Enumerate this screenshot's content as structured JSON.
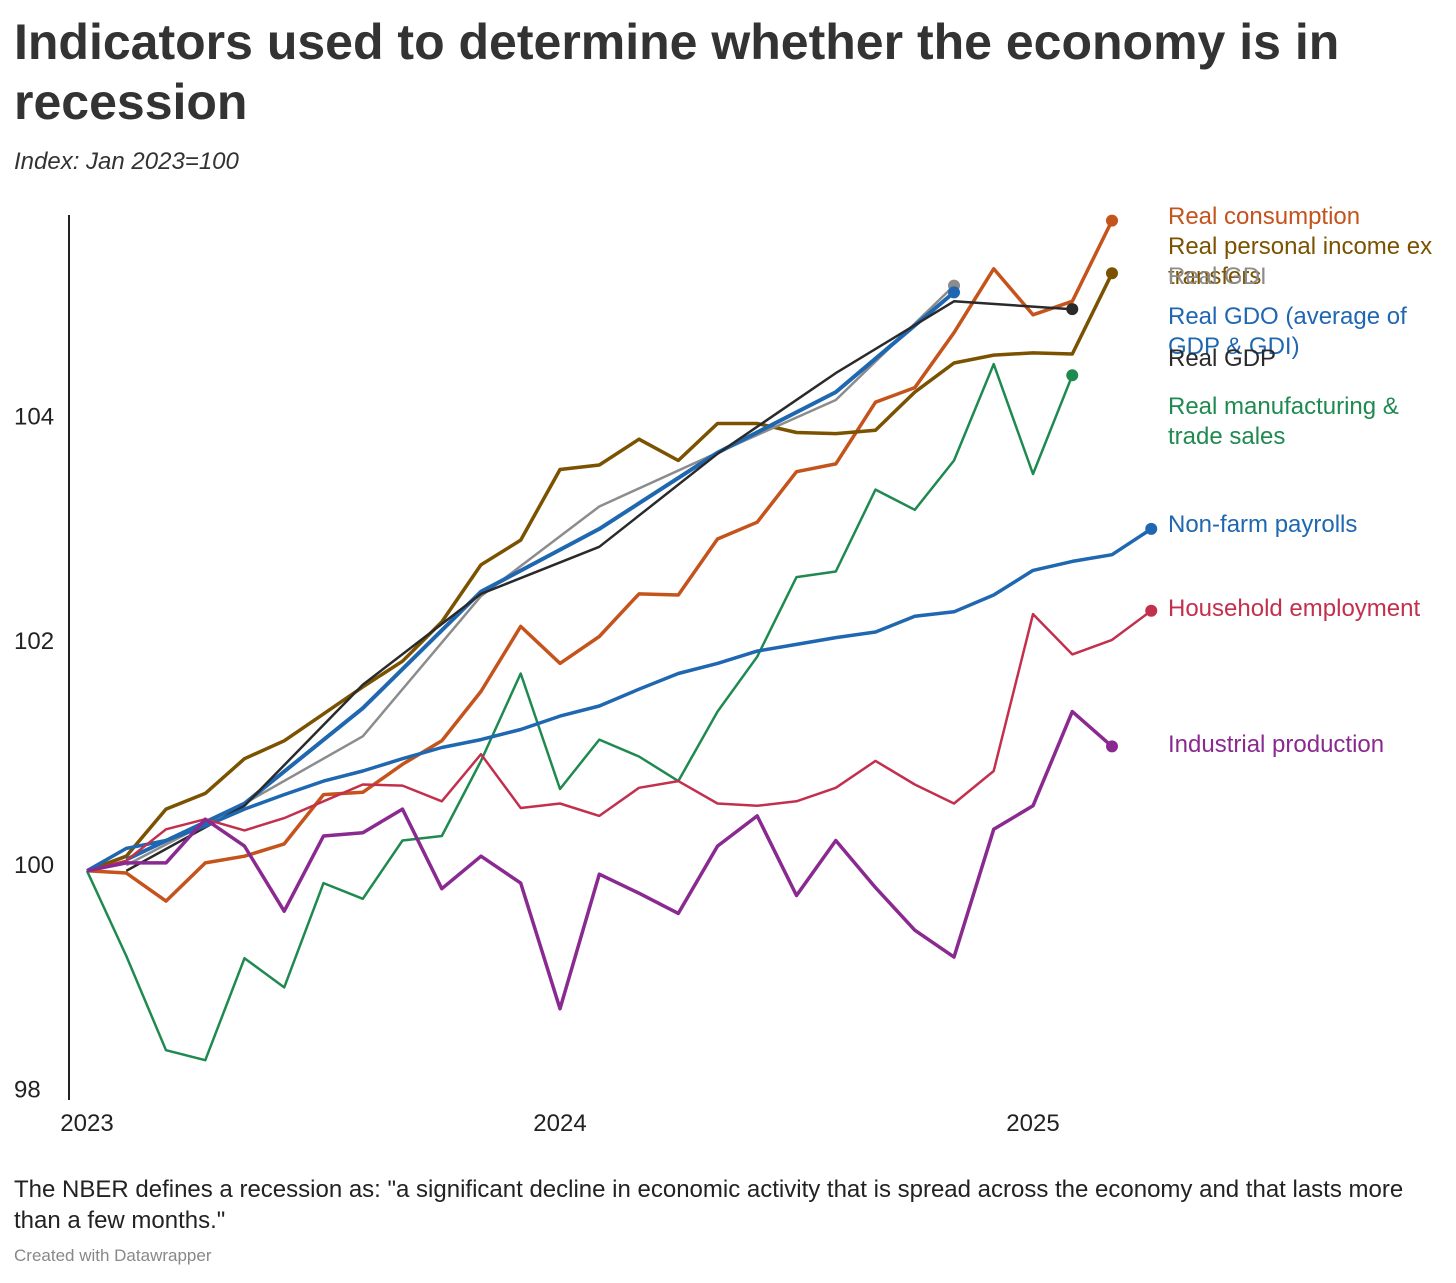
{
  "chart_data": {
    "type": "line",
    "title": "Indicators used to determine whether the economy is in recession",
    "subtitle": "Index: Jan 2023=100",
    "note": "The NBER defines a recession as: \"a significant decline in economic activity that is spread across the economy and that lasts more than a few months.\"",
    "credit": "Created with Datawrapper",
    "x": [
      2023,
      2023.083,
      2023.167,
      2023.25,
      2023.333,
      2023.417,
      2023.5,
      2023.583,
      2023.667,
      2023.75,
      2023.833,
      2023.917,
      2024,
      2024.083,
      2024.167,
      2024.25,
      2024.333,
      2024.417,
      2024.5,
      2024.583,
      2024.667,
      2024.75,
      2024.833,
      2024.917,
      2025,
      2025.083,
      2025.167,
      2025.25
    ],
    "xlim": [
      2023,
      2025.85
    ],
    "xticks": [
      2023,
      2024,
      2025
    ],
    "ylim": [
      98,
      105.85
    ],
    "yticks": [
      98,
      100,
      102,
      104
    ],
    "grid": false,
    "series": [
      {
        "name": "Real consumption",
        "color": "#c4531c",
        "values": [
          100,
          99.98,
          99.73,
          100.07,
          100.13,
          100.24,
          100.68,
          100.7,
          100.95,
          101.16,
          101.6,
          102.18,
          101.85,
          102.09,
          102.47,
          102.46,
          102.96,
          103.11,
          103.56,
          103.63,
          104.18,
          104.31,
          104.8,
          105.37,
          104.96,
          105.08,
          105.8,
          null
        ]
      },
      {
        "name": "Real personal income ex transfers",
        "color": "#7a5200",
        "values": [
          100,
          100.13,
          100.55,
          100.69,
          101.0,
          101.16,
          101.4,
          101.64,
          101.87,
          102.22,
          102.73,
          102.95,
          103.58,
          103.62,
          103.85,
          103.66,
          103.99,
          103.99,
          103.91,
          103.9,
          103.93,
          104.27,
          104.53,
          104.6,
          104.62,
          104.61,
          105.33,
          null
        ]
      },
      {
        "name": "Real GDI",
        "color": "#8c8c8c",
        "x": [
          2023.083,
          2023.333,
          2023.583,
          2023.833,
          2024.083,
          2024.333,
          2024.583,
          2024.833
        ],
        "values": [
          100.05,
          100.6,
          101.2,
          102.45,
          103.25,
          103.73,
          104.2,
          105.22
        ]
      },
      {
        "name": "Real GDO (average of GDP & GDI)",
        "color": "#1f67b1",
        "x": [
          2023.083,
          2023.333,
          2023.583,
          2023.833,
          2024.083,
          2024.333,
          2024.583,
          2024.833
        ],
        "values": [
          100.1,
          100.6,
          101.45,
          102.49,
          103.05,
          103.73,
          104.27,
          105.16
        ]
      },
      {
        "name": "Real GDP",
        "color": "#2a2a2a",
        "x": [
          2023.083,
          2023.333,
          2023.583,
          2023.833,
          2024.083,
          2024.333,
          2024.583,
          2024.833,
          2025.083
        ],
        "values": [
          100.0,
          100.58,
          101.66,
          102.47,
          102.89,
          103.72,
          104.44,
          105.08,
          105.01
        ]
      },
      {
        "name": "Real manufacturing & trade sales",
        "color": "#1f8a50",
        "values": [
          100,
          99.24,
          98.4,
          98.31,
          99.22,
          98.96,
          99.89,
          99.75,
          100.27,
          100.31,
          100.98,
          101.76,
          100.73,
          101.17,
          101.02,
          100.8,
          101.42,
          101.91,
          102.62,
          102.67,
          103.4,
          103.22,
          103.66,
          104.52,
          103.54,
          104.42,
          null,
          null
        ]
      },
      {
        "name": "Non-farm payrolls",
        "color": "#1f67b1",
        "values": [
          100,
          100.2,
          100.27,
          100.4,
          100.55,
          100.68,
          100.8,
          100.89,
          101.0,
          101.1,
          101.17,
          101.26,
          101.38,
          101.47,
          101.62,
          101.76,
          101.85,
          101.96,
          102.02,
          102.08,
          102.13,
          102.27,
          102.31,
          102.46,
          102.68,
          102.76,
          102.82,
          103.05
        ]
      },
      {
        "name": "Household employment",
        "color": "#c2304e",
        "values": [
          100,
          100.09,
          100.37,
          100.46,
          100.36,
          100.47,
          100.62,
          100.77,
          100.76,
          100.62,
          101.04,
          100.56,
          100.6,
          100.49,
          100.74,
          100.8,
          100.6,
          100.58,
          100.62,
          100.74,
          100.98,
          100.77,
          100.6,
          100.89,
          102.29,
          101.93,
          102.06,
          102.32
        ]
      },
      {
        "name": "Industrial production",
        "color": "#8a2a90",
        "values": [
          100,
          100.07,
          100.07,
          100.46,
          100.22,
          99.64,
          100.31,
          100.34,
          100.55,
          99.84,
          100.13,
          99.89,
          98.77,
          99.97,
          99.8,
          99.62,
          100.22,
          100.49,
          99.78,
          100.27,
          99.85,
          99.47,
          99.23,
          100.37,
          100.58,
          101.42,
          101.11,
          null
        ]
      }
    ]
  }
}
